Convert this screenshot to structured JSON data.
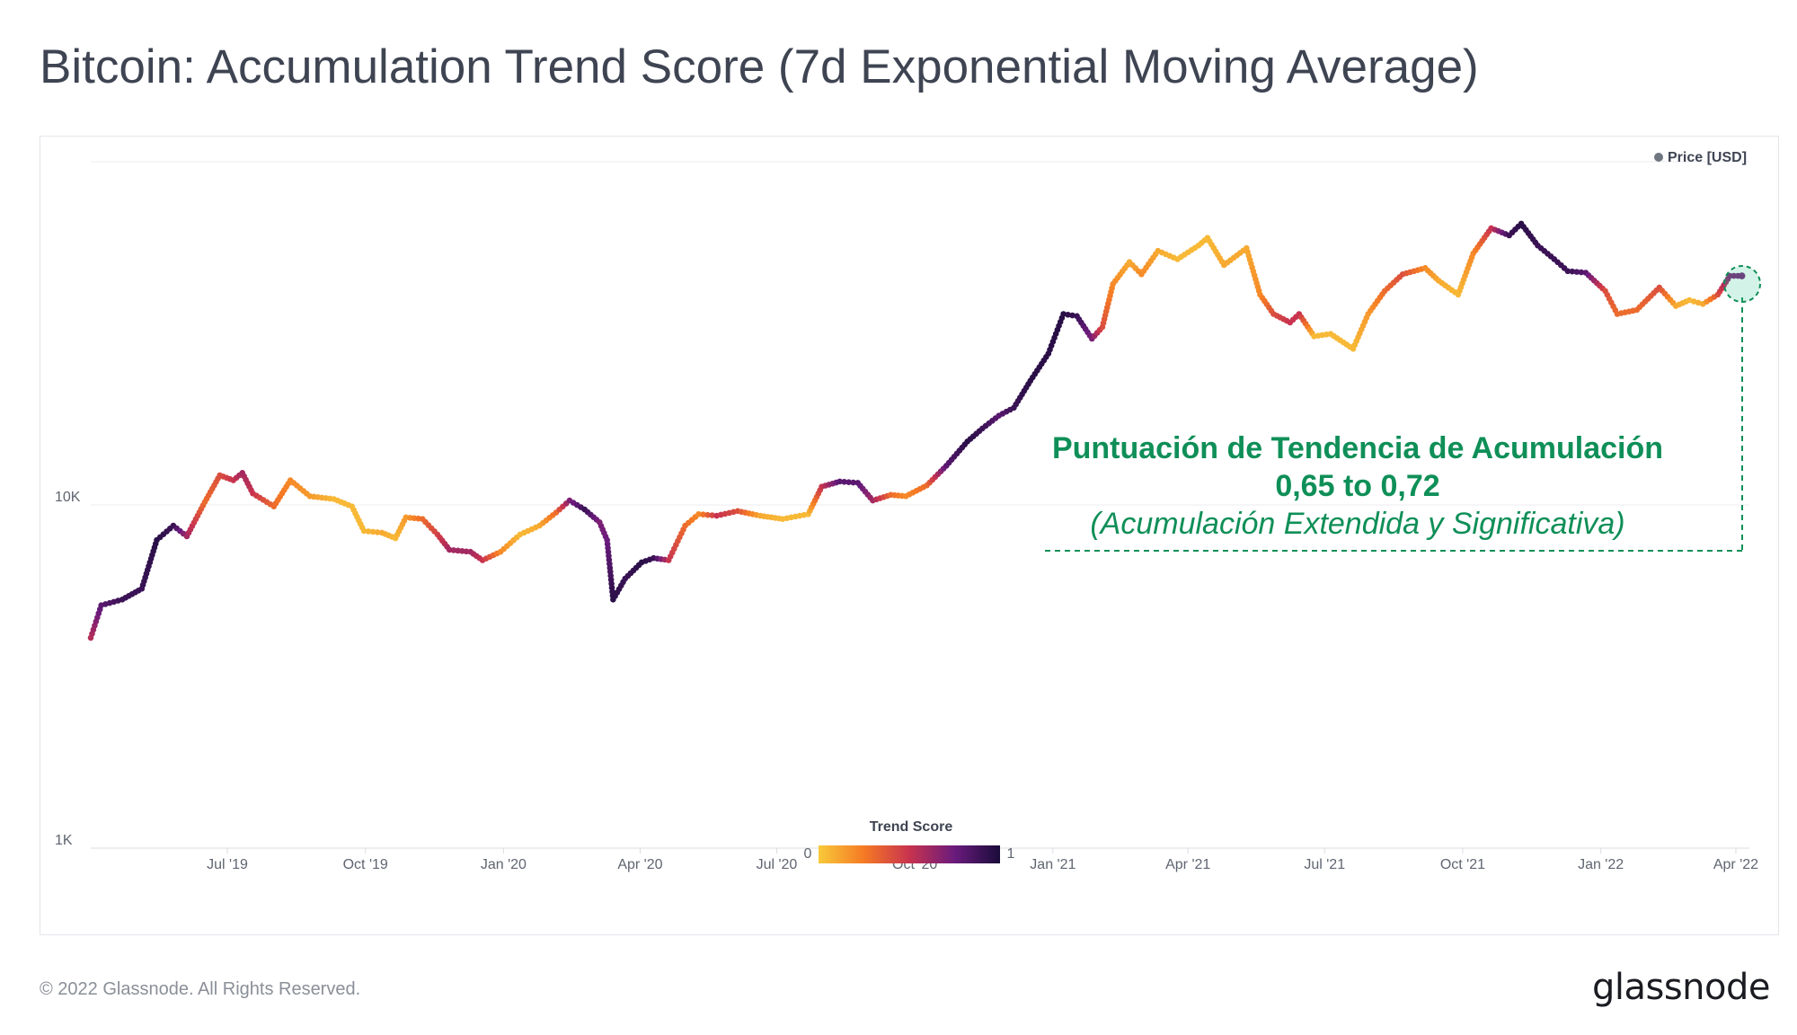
{
  "page": {
    "title": "Bitcoin: Accumulation Trend Score (7d Exponential Moving Average)",
    "copyright": "© 2022 Glassnode. All Rights Reserved.",
    "brand": "glassnode"
  },
  "colors": {
    "score_0": "#f8c93a",
    "score_025": "#f57a24",
    "score_05": "#c8334f",
    "score_075": "#6a1b7d",
    "score_1": "#1a0c3a",
    "annotation": "#0f8f58",
    "grid": "#eceef1"
  },
  "annotation": {
    "title": "Puntuación de Tendencia de Acumulación",
    "range": "0,65 to 0,72",
    "subtitle": "(Acumulación Extendida y Significativa)"
  },
  "chart_data": {
    "type": "line",
    "title": "Bitcoin: Accumulation Trend Score (7d Exponential Moving Average)",
    "series_name": "Price [USD]",
    "y_scale": "log",
    "ylim": [
      1000,
      100000
    ],
    "y_ticks": [
      {
        "value": 1000,
        "label": "1K"
      },
      {
        "value": 10000,
        "label": "10K"
      }
    ],
    "x_range": [
      "2019-04-01",
      "2022-04-10"
    ],
    "x_ticks": [
      {
        "date": "2019-07-01",
        "label": "Jul '19"
      },
      {
        "date": "2019-10-01",
        "label": "Oct '19"
      },
      {
        "date": "2020-01-01",
        "label": "Jan '20"
      },
      {
        "date": "2020-04-01",
        "label": "Apr '20"
      },
      {
        "date": "2020-07-01",
        "label": "Jul '20"
      },
      {
        "date": "2020-10-01",
        "label": "Oct '20"
      },
      {
        "date": "2021-01-01",
        "label": "Jan '21"
      },
      {
        "date": "2021-04-01",
        "label": "Apr '21"
      },
      {
        "date": "2021-07-01",
        "label": "Jul '21"
      },
      {
        "date": "2021-10-01",
        "label": "Oct '21"
      },
      {
        "date": "2022-01-01",
        "label": "Jan '22"
      },
      {
        "date": "2022-04-01",
        "label": "Apr '22"
      }
    ],
    "legend": {
      "series_label": "Price [USD]",
      "colorbar_title": "Trend Score",
      "colorbar_min_label": "0",
      "colorbar_max_label": "1",
      "position": "top-right"
    },
    "points": [
      {
        "date": "2019-04-01",
        "price": 4100,
        "score": 0.55
      },
      {
        "date": "2019-04-08",
        "price": 5100,
        "score": 0.8
      },
      {
        "date": "2019-04-22",
        "price": 5300,
        "score": 0.9
      },
      {
        "date": "2019-05-05",
        "price": 5700,
        "score": 0.9
      },
      {
        "date": "2019-05-15",
        "price": 7900,
        "score": 0.95
      },
      {
        "date": "2019-05-26",
        "price": 8700,
        "score": 0.9
      },
      {
        "date": "2019-06-04",
        "price": 8100,
        "score": 0.6
      },
      {
        "date": "2019-06-16",
        "price": 10200,
        "score": 0.3
      },
      {
        "date": "2019-06-26",
        "price": 12200,
        "score": 0.4
      },
      {
        "date": "2019-07-05",
        "price": 11800,
        "score": 0.5
      },
      {
        "date": "2019-07-11",
        "price": 12400,
        "score": 0.6
      },
      {
        "date": "2019-07-18",
        "price": 10800,
        "score": 0.5
      },
      {
        "date": "2019-08-01",
        "price": 9900,
        "score": 0.3
      },
      {
        "date": "2019-08-12",
        "price": 11800,
        "score": 0.2
      },
      {
        "date": "2019-08-25",
        "price": 10600,
        "score": 0.15
      },
      {
        "date": "2019-09-10",
        "price": 10400,
        "score": 0.05
      },
      {
        "date": "2019-09-22",
        "price": 9900,
        "score": 0.05
      },
      {
        "date": "2019-09-30",
        "price": 8400,
        "score": 0.05
      },
      {
        "date": "2019-10-12",
        "price": 8300,
        "score": 0.1
      },
      {
        "date": "2019-10-21",
        "price": 8000,
        "score": 0.05
      },
      {
        "date": "2019-10-28",
        "price": 9200,
        "score": 0.15
      },
      {
        "date": "2019-11-08",
        "price": 9100,
        "score": 0.3
      },
      {
        "date": "2019-11-18",
        "price": 8200,
        "score": 0.45
      },
      {
        "date": "2019-11-26",
        "price": 7400,
        "score": 0.6
      },
      {
        "date": "2019-12-10",
        "price": 7300,
        "score": 0.6
      },
      {
        "date": "2019-12-18",
        "price": 6900,
        "score": 0.5
      },
      {
        "date": "2019-12-30",
        "price": 7300,
        "score": 0.2
      },
      {
        "date": "2020-01-12",
        "price": 8200,
        "score": 0.05
      },
      {
        "date": "2020-01-25",
        "price": 8700,
        "score": 0.1
      },
      {
        "date": "2020-02-05",
        "price": 9500,
        "score": 0.3
      },
      {
        "date": "2020-02-14",
        "price": 10300,
        "score": 0.7
      },
      {
        "date": "2020-02-24",
        "price": 9700,
        "score": 0.9
      },
      {
        "date": "2020-03-05",
        "price": 8900,
        "score": 0.7
      },
      {
        "date": "2020-03-10",
        "price": 7900,
        "score": 0.75
      },
      {
        "date": "2020-03-14",
        "price": 5300,
        "score": 0.95
      },
      {
        "date": "2020-03-22",
        "price": 6100,
        "score": 0.9
      },
      {
        "date": "2020-04-02",
        "price": 6800,
        "score": 0.95
      },
      {
        "date": "2020-04-10",
        "price": 7000,
        "score": 0.9
      },
      {
        "date": "2020-04-20",
        "price": 6900,
        "score": 0.5
      },
      {
        "date": "2020-05-01",
        "price": 8700,
        "score": 0.3
      },
      {
        "date": "2020-05-10",
        "price": 9400,
        "score": 0.2
      },
      {
        "date": "2020-05-22",
        "price": 9300,
        "score": 0.5
      },
      {
        "date": "2020-06-05",
        "price": 9600,
        "score": 0.4
      },
      {
        "date": "2020-06-20",
        "price": 9300,
        "score": 0.1
      },
      {
        "date": "2020-07-05",
        "price": 9100,
        "score": 0.05
      },
      {
        "date": "2020-07-22",
        "price": 9400,
        "score": 0.05
      },
      {
        "date": "2020-07-31",
        "price": 11300,
        "score": 0.5
      },
      {
        "date": "2020-08-12",
        "price": 11700,
        "score": 0.8
      },
      {
        "date": "2020-08-24",
        "price": 11600,
        "score": 0.8
      },
      {
        "date": "2020-09-03",
        "price": 10300,
        "score": 0.6
      },
      {
        "date": "2020-09-15",
        "price": 10700,
        "score": 0.3
      },
      {
        "date": "2020-09-25",
        "price": 10600,
        "score": 0.2
      },
      {
        "date": "2020-10-09",
        "price": 11400,
        "score": 0.3
      },
      {
        "date": "2020-10-22",
        "price": 13000,
        "score": 0.8
      },
      {
        "date": "2020-11-05",
        "price": 15300,
        "score": 0.95
      },
      {
        "date": "2020-11-15",
        "price": 16700,
        "score": 0.9
      },
      {
        "date": "2020-11-26",
        "price": 18200,
        "score": 0.8
      },
      {
        "date": "2020-12-06",
        "price": 19200,
        "score": 0.9
      },
      {
        "date": "2020-12-17",
        "price": 23000,
        "score": 0.95
      },
      {
        "date": "2020-12-29",
        "price": 27600,
        "score": 0.95
      },
      {
        "date": "2021-01-08",
        "price": 36000,
        "score": 0.95
      },
      {
        "date": "2021-01-17",
        "price": 35500,
        "score": 0.9
      },
      {
        "date": "2021-01-27",
        "price": 30500,
        "score": 0.7
      },
      {
        "date": "2021-02-03",
        "price": 33000,
        "score": 0.4
      },
      {
        "date": "2021-02-10",
        "price": 44000,
        "score": 0.2
      },
      {
        "date": "2021-02-21",
        "price": 51000,
        "score": 0.1
      },
      {
        "date": "2021-03-01",
        "price": 47000,
        "score": 0.2
      },
      {
        "date": "2021-03-12",
        "price": 55000,
        "score": 0.1
      },
      {
        "date": "2021-03-25",
        "price": 52000,
        "score": 0.05
      },
      {
        "date": "2021-04-08",
        "price": 57000,
        "score": 0.05
      },
      {
        "date": "2021-04-14",
        "price": 60000,
        "score": 0.05
      },
      {
        "date": "2021-04-25",
        "price": 50000,
        "score": 0.1
      },
      {
        "date": "2021-05-10",
        "price": 56000,
        "score": 0.1
      },
      {
        "date": "2021-05-19",
        "price": 41000,
        "score": 0.2
      },
      {
        "date": "2021-05-28",
        "price": 36000,
        "score": 0.4
      },
      {
        "date": "2021-06-08",
        "price": 34000,
        "score": 0.5
      },
      {
        "date": "2021-06-14",
        "price": 36000,
        "score": 0.5
      },
      {
        "date": "2021-06-24",
        "price": 31000,
        "score": 0.05
      },
      {
        "date": "2021-07-05",
        "price": 31500,
        "score": 0.05
      },
      {
        "date": "2021-07-20",
        "price": 28500,
        "score": 0.05
      },
      {
        "date": "2021-07-30",
        "price": 36000,
        "score": 0.15
      },
      {
        "date": "2021-08-10",
        "price": 42000,
        "score": 0.3
      },
      {
        "date": "2021-08-22",
        "price": 47000,
        "score": 0.4
      },
      {
        "date": "2021-09-06",
        "price": 49000,
        "score": 0.2
      },
      {
        "date": "2021-09-15",
        "price": 45000,
        "score": 0.1
      },
      {
        "date": "2021-09-28",
        "price": 41000,
        "score": 0.05
      },
      {
        "date": "2021-10-08",
        "price": 54000,
        "score": 0.2
      },
      {
        "date": "2021-10-20",
        "price": 64000,
        "score": 0.5
      },
      {
        "date": "2021-11-01",
        "price": 61000,
        "score": 0.9
      },
      {
        "date": "2021-11-09",
        "price": 66000,
        "score": 0.95
      },
      {
        "date": "2021-11-20",
        "price": 57000,
        "score": 0.9
      },
      {
        "date": "2021-12-01",
        "price": 52000,
        "score": 0.9
      },
      {
        "date": "2021-12-10",
        "price": 48000,
        "score": 0.9
      },
      {
        "date": "2021-12-22",
        "price": 47500,
        "score": 0.8
      },
      {
        "date": "2022-01-04",
        "price": 42000,
        "score": 0.4
      },
      {
        "date": "2022-01-12",
        "price": 36000,
        "score": 0.3
      },
      {
        "date": "2022-01-25",
        "price": 37000,
        "score": 0.3
      },
      {
        "date": "2022-02-09",
        "price": 43000,
        "score": 0.4
      },
      {
        "date": "2022-02-20",
        "price": 38000,
        "score": 0.1
      },
      {
        "date": "2022-03-01",
        "price": 39500,
        "score": 0.05
      },
      {
        "date": "2022-03-10",
        "price": 38500,
        "score": 0.1
      },
      {
        "date": "2022-03-20",
        "price": 41000,
        "score": 0.4
      },
      {
        "date": "2022-03-28",
        "price": 46500,
        "score": 0.7
      },
      {
        "date": "2022-04-05",
        "price": 46500,
        "score": 0.72
      }
    ]
  }
}
